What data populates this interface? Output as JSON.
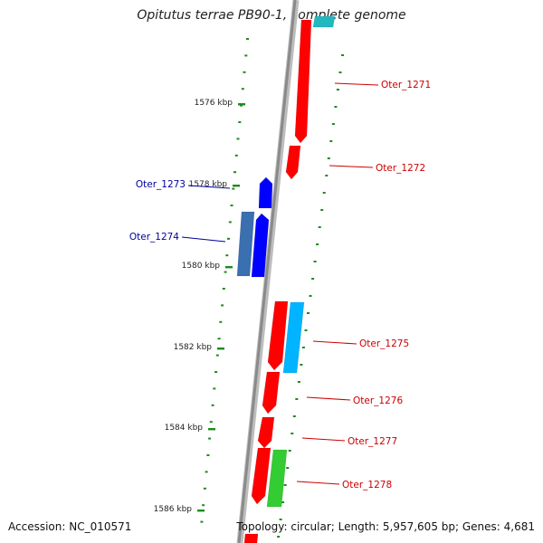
{
  "title": "Opitutus terrae PB90-1, complete genome",
  "footer": {
    "accession": "Accession: NC_010571",
    "summary": "Topology: circular; Length: 5,957,605 bp; Genes: 4,681"
  },
  "colors": {
    "backbone": "#8a8a8a",
    "tick": "#1e8a1e",
    "forward_label": "#cc0000",
    "reverse_label": "#000099",
    "red_gene": "#ff0000",
    "blue_gene": "#0000ff",
    "steelblue_gene": "#3a6fb0",
    "cyan_gene": "#00b4ff",
    "green_gene": "#33cc33",
    "teal_gene": "#22b8c0"
  },
  "scale_labels": [
    "1576 kbp",
    "1578 kbp",
    "1580 kbp",
    "1582 kbp",
    "1584 kbp",
    "1586 kbp"
  ],
  "genes": [
    {
      "label": "Oter_1271",
      "strand": "forward"
    },
    {
      "label": "Oter_1272",
      "strand": "forward"
    },
    {
      "label": "Oter_1273",
      "strand": "reverse"
    },
    {
      "label": "Oter_1274",
      "strand": "reverse"
    },
    {
      "label": "Oter_1275",
      "strand": "forward"
    },
    {
      "label": "Oter_1276",
      "strand": "forward"
    },
    {
      "label": "Oter_1277",
      "strand": "forward"
    },
    {
      "label": "Oter_1278",
      "strand": "forward"
    }
  ]
}
